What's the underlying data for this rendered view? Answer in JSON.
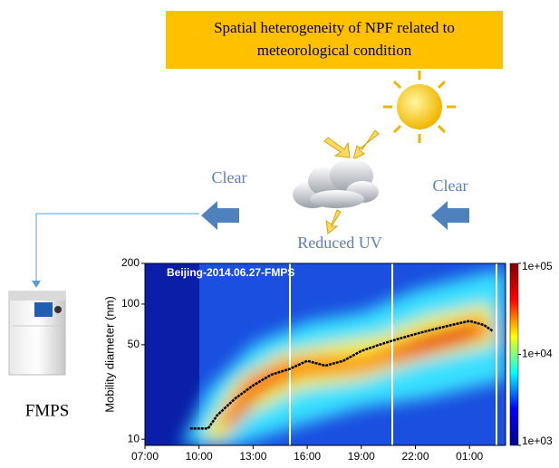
{
  "header": {
    "title_lines": [
      "Spatial heterogeneity of NPF related to",
      "meteorological condition"
    ]
  },
  "labels": {
    "clear_left": "Clear",
    "clear_right": "Clear",
    "reduced_uv": "Reduced UV",
    "instrument": "FMPS"
  },
  "chart_data": {
    "type": "heatmap",
    "title": "Beijing-2014.06.27-FMPS",
    "y_label": "Mobility diameter (nm)",
    "xlim": [
      7,
      27
    ],
    "xticks": [
      {
        "value": 7,
        "label": "07:00"
      },
      {
        "value": 10,
        "label": "10:00"
      },
      {
        "value": 13,
        "label": "13:00"
      },
      {
        "value": 16,
        "label": "16:00"
      },
      {
        "value": 19,
        "label": "19:00"
      },
      {
        "value": 22,
        "label": "22:00"
      },
      {
        "value": 25,
        "label": "01:00"
      }
    ],
    "ylim": [
      9,
      200
    ],
    "yticks": [
      10,
      50,
      100,
      200
    ],
    "log_y": true,
    "colorbar": {
      "lim": [
        1000,
        100000
      ],
      "log": true,
      "ticks": [
        {
          "value": 1000,
          "label": "1e+03"
        },
        {
          "value": 10000,
          "label": "1e+04"
        },
        {
          "value": 100000,
          "label": "1e+05"
        }
      ],
      "colors": [
        "#00008f",
        "#0000ff",
        "#00ffff",
        "#ffff00",
        "#ff0000",
        "#800000"
      ]
    },
    "series": [
      {
        "color": "#000000",
        "x": [
          9.5,
          10.5,
          11,
          12,
          13,
          14,
          15,
          16,
          17,
          18,
          19,
          20,
          21,
          22,
          23,
          24,
          25,
          25.8,
          26.3
        ],
        "values": [
          12,
          12,
          15,
          20,
          25,
          30,
          33,
          38,
          35,
          38,
          45,
          50,
          55,
          60,
          65,
          70,
          75,
          70,
          63
        ]
      }
    ]
  }
}
